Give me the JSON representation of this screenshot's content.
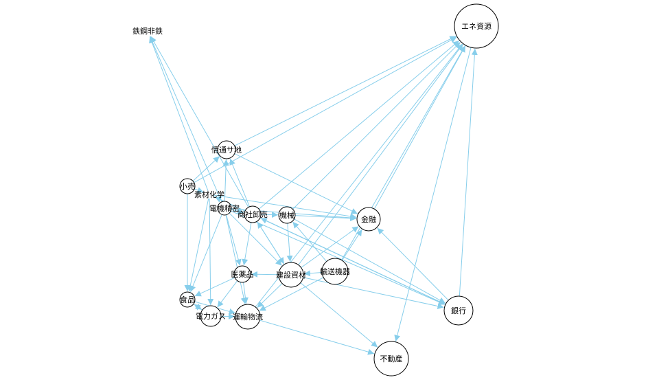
{
  "graph": {
    "edge_color": "#87CEEB",
    "node_stroke": "#000000",
    "node_fill": "#FFFFFF",
    "nodes": [
      {
        "id": "鉄鋼非鉄",
        "label": "鉄鋼非鉄"
      },
      {
        "id": "エネ資源",
        "label": "エネ資源"
      },
      {
        "id": "情通サ地",
        "label": "情通サ地"
      },
      {
        "id": "小売",
        "label": "小売"
      },
      {
        "id": "素材化学",
        "label": "素材化学"
      },
      {
        "id": "電機精密",
        "label": "電機精密"
      },
      {
        "id": "商社卸売",
        "label": "商社卸売"
      },
      {
        "id": "機械",
        "label": "機械"
      },
      {
        "id": "金融",
        "label": "金融"
      },
      {
        "id": "医薬品",
        "label": "医薬品"
      },
      {
        "id": "建設資材",
        "label": "建設資材"
      },
      {
        "id": "輸送機器",
        "label": "輸送機器"
      },
      {
        "id": "食品",
        "label": "食品"
      },
      {
        "id": "電力ガス",
        "label": "電力ガス"
      },
      {
        "id": "運輸物流",
        "label": "運輸物流"
      },
      {
        "id": "銀行",
        "label": "銀行"
      },
      {
        "id": "不動産",
        "label": "不動産"
      }
    ],
    "edges": [
      [
        "情通サ地",
        "エネ資源"
      ],
      [
        "小売",
        "エネ資源"
      ],
      [
        "商社卸売",
        "エネ資源"
      ],
      [
        "機械",
        "エネ資源"
      ],
      [
        "輸送機器",
        "エネ資源"
      ],
      [
        "建設資材",
        "エネ資源"
      ],
      [
        "金融",
        "エネ資源"
      ],
      [
        "銀行",
        "エネ資源"
      ],
      [
        "運輸物流",
        "エネ資源"
      ],
      [
        "エネ資源",
        "不動産"
      ],
      [
        "商社卸売",
        "鉄鋼非鉄"
      ],
      [
        "電機精密",
        "鉄鋼非鉄"
      ],
      [
        "素材化学",
        "鉄鋼非鉄"
      ],
      [
        "小売",
        "情通サ地"
      ],
      [
        "商社卸売",
        "情通サ地"
      ],
      [
        "電機精密",
        "情通サ地"
      ],
      [
        "情通サ地",
        "金融"
      ],
      [
        "素材化学",
        "金融"
      ],
      [
        "機械",
        "金融"
      ],
      [
        "電機精密",
        "金融"
      ],
      [
        "輸送機器",
        "金融"
      ],
      [
        "建設資材",
        "金融"
      ],
      [
        "銀行",
        "金融"
      ],
      [
        "素材化学",
        "銀行"
      ],
      [
        "商社卸売",
        "銀行"
      ],
      [
        "機械",
        "銀行"
      ],
      [
        "建設資材",
        "銀行"
      ],
      [
        "電機精密",
        "銀行"
      ],
      [
        "小売",
        "素材化学"
      ],
      [
        "商社卸売",
        "素材化学"
      ],
      [
        "電機精密",
        "商社卸売"
      ],
      [
        "建設資材",
        "商社卸売"
      ],
      [
        "銀行",
        "商社卸売"
      ],
      [
        "商社卸売",
        "機械"
      ],
      [
        "輸送機器",
        "機械"
      ],
      [
        "機械",
        "建設資材"
      ],
      [
        "商社卸売",
        "建設資材"
      ],
      [
        "輸送機器",
        "建設資材"
      ],
      [
        "電機精密",
        "建設資材"
      ],
      [
        "建設資材",
        "医薬品"
      ],
      [
        "商社卸売",
        "医薬品"
      ],
      [
        "電機精密",
        "医薬品"
      ],
      [
        "小売",
        "食品"
      ],
      [
        "素材化学",
        "食品"
      ],
      [
        "電機精密",
        "食品"
      ],
      [
        "電力ガス",
        "食品"
      ],
      [
        "医薬品",
        "食品"
      ],
      [
        "食品",
        "電力ガス"
      ],
      [
        "医薬品",
        "電力ガス"
      ],
      [
        "素材化学",
        "電力ガス"
      ],
      [
        "電力ガス",
        "運輸物流"
      ],
      [
        "医薬品",
        "運輸物流"
      ],
      [
        "建設資材",
        "運輸物流"
      ],
      [
        "輸送機器",
        "運輸物流"
      ],
      [
        "電機精密",
        "運輸物流"
      ],
      [
        "食品",
        "運輸物流"
      ],
      [
        "建設資材",
        "不動産"
      ],
      [
        "運輸物流",
        "不動産"
      ]
    ]
  }
}
